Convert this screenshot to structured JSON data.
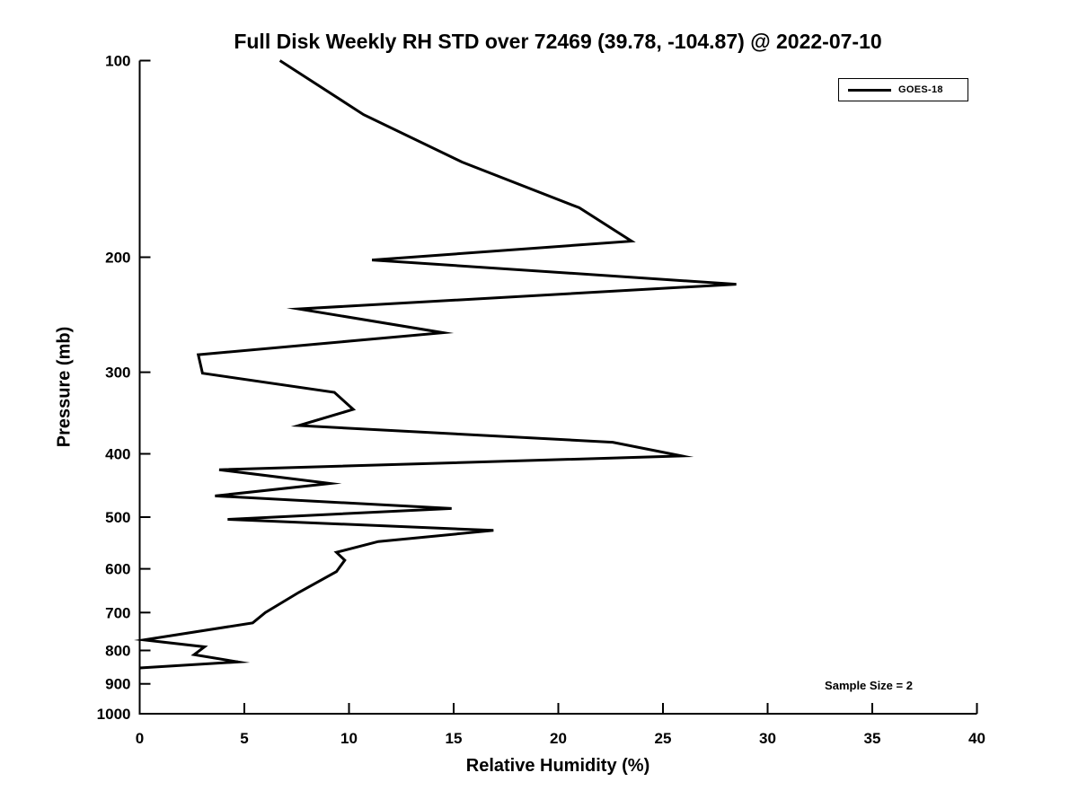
{
  "title": "Full Disk Weekly RH STD over 72469 (39.78, -104.87) @ 2022-07-10",
  "annotations": {
    "sample_size": "Sample Size = 2"
  },
  "chart_data": {
    "type": "line",
    "title": "Full Disk Weekly RH STD over 72469 (39.78, -104.87) @ 2022-07-10",
    "xlabel": "Relative Humidity (%)",
    "ylabel": "Pressure (mb)",
    "xlim": [
      0,
      40
    ],
    "ylim": [
      100,
      1000
    ],
    "y_scale": "log",
    "y_inverted": true,
    "grid": false,
    "legend_position": "upper right",
    "x_ticks": [
      0,
      5,
      10,
      15,
      20,
      25,
      30,
      35,
      40
    ],
    "y_ticks": [
      100,
      200,
      300,
      400,
      500,
      600,
      700,
      800,
      900,
      1000
    ],
    "line_color": "#000000",
    "line_width": 3,
    "series": [
      {
        "name": "GOES-18",
        "x_rh_percent": [
          6.7,
          10.7,
          15.4,
          21.0,
          23.5,
          11.1,
          28.5,
          7.6,
          14.5,
          2.8,
          3.0,
          9.3,
          10.2,
          7.6,
          22.6,
          25.9,
          3.8,
          9.1,
          3.6,
          14.9,
          4.2,
          16.9,
          11.4,
          9.4,
          9.8,
          9.4,
          7.6,
          6.0,
          5.4,
          0.2,
          3.1,
          2.6,
          4.7,
          0.0
        ],
        "y_pressure_mb": [
          100,
          121,
          143,
          168,
          189,
          202,
          220,
          240,
          261,
          282,
          301,
          322,
          342,
          362,
          384,
          403,
          423,
          444,
          464,
          485,
          504,
          524,
          545,
          566,
          582,
          606,
          652,
          700,
          726,
          771,
          790,
          812,
          833,
          851
        ]
      }
    ]
  }
}
